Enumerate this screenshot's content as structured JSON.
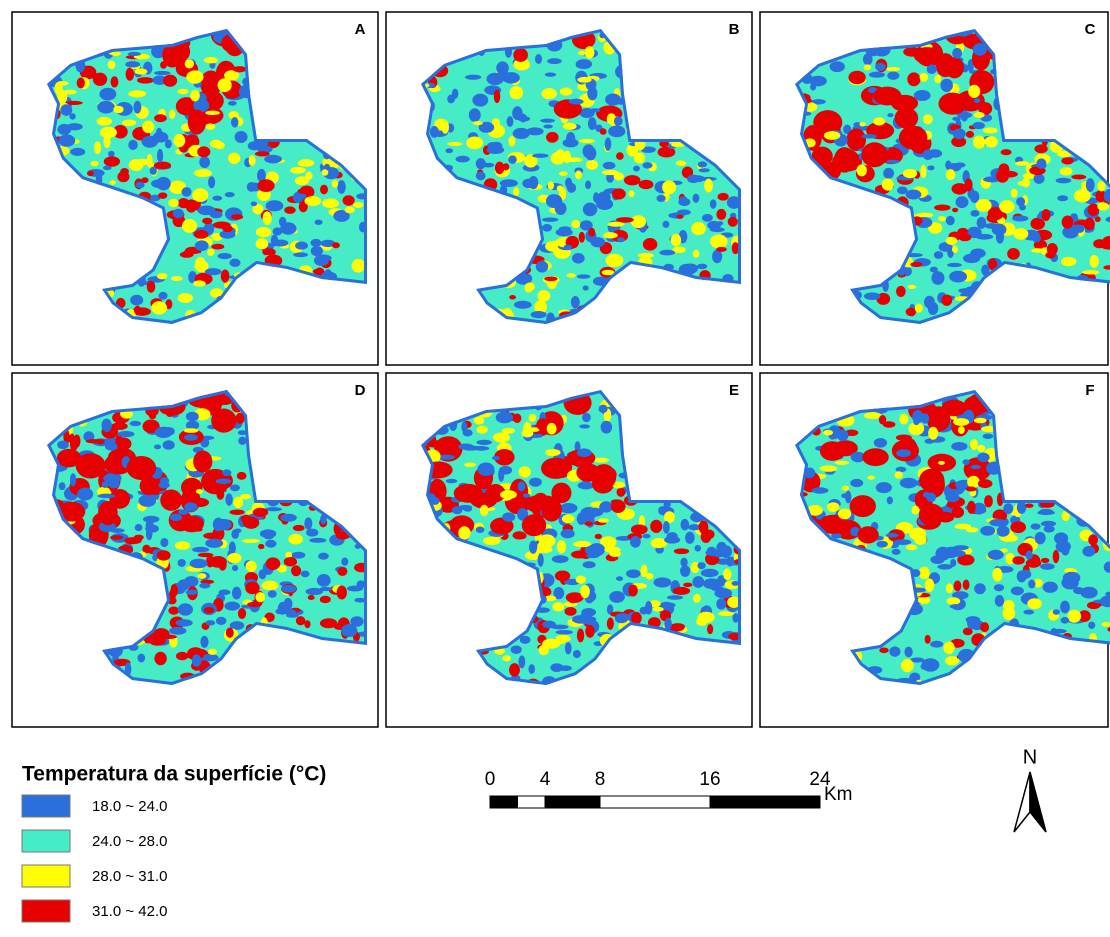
{
  "panels": [
    {
      "label": "A"
    },
    {
      "label": "B"
    },
    {
      "label": "C"
    },
    {
      "label": "D"
    },
    {
      "label": "E"
    },
    {
      "label": "F"
    }
  ],
  "legend": {
    "title": "Temperatura da superfície (°C)",
    "items": [
      {
        "label": "18.0 ~ 24.0",
        "color": "#2b6fdc"
      },
      {
        "label": "24.0 ~ 28.0",
        "color": "#45ecc6"
      },
      {
        "label": "28.0 ~ 31.0",
        "color": "#ffff00"
      },
      {
        "label": "31.0 ~ 42.0",
        "color": "#e60000"
      }
    ]
  },
  "scale_bar": {
    "ticks": [
      0,
      4,
      8,
      16,
      24
    ],
    "unit": "Km"
  },
  "north_arrow": {
    "label": "N"
  }
}
